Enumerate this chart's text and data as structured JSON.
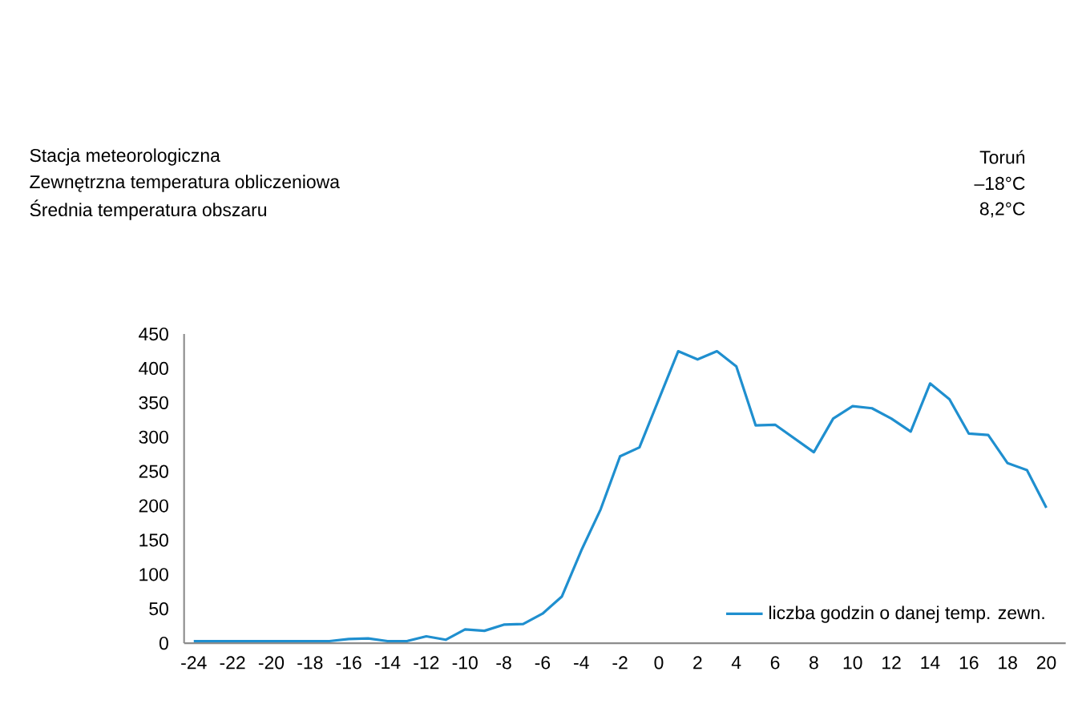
{
  "chart_data": {
    "type": "line",
    "annotations": [
      "Stacja meteorologiczna",
      "Toruń",
      "Zewnętrzna temperatura obliczeniowa",
      "–18°C",
      "Średnia temperatura obszaru",
      "8,2°C"
    ],
    "x": [
      -24,
      -23,
      -22,
      -21,
      -20,
      -19,
      -18,
      -17,
      -16,
      -15,
      -14,
      -13,
      -12,
      -11,
      -10,
      -9,
      -8,
      -7,
      -6,
      -5,
      -4,
      -3,
      -2,
      -1,
      0,
      1,
      2,
      3,
      4,
      5,
      6,
      7,
      8,
      9,
      10,
      11,
      12,
      13,
      14,
      15,
      16,
      17,
      18,
      19,
      20
    ],
    "series": [
      {
        "name": "liczba godzin o danej temp. zewn.",
        "color": "#1f8fcf",
        "values": [
          3,
          3,
          3,
          3,
          3,
          3,
          3,
          3,
          6,
          7,
          3,
          3,
          10,
          5,
          20,
          18,
          27,
          28,
          43,
          68,
          135,
          195,
          272,
          285,
          355,
          425,
          413,
          425,
          403,
          317,
          318,
          298,
          278,
          327,
          345,
          342,
          327,
          308,
          378,
          355,
          305,
          303,
          262,
          252,
          197
        ]
      }
    ],
    "xlim": [
      -24.5,
      21
    ],
    "ylim": [
      0,
      450
    ],
    "xticks": [
      -24,
      -22,
      -20,
      -18,
      -16,
      -14,
      -12,
      -10,
      -8,
      -6,
      -4,
      -2,
      0,
      2,
      4,
      6,
      8,
      10,
      12,
      14,
      16,
      18,
      20
    ],
    "yticks": [
      0,
      50,
      100,
      150,
      200,
      250,
      300,
      350,
      400,
      450
    ],
    "grid": false,
    "legend": "bottom right",
    "marker": "none",
    "line_style": "solid"
  }
}
